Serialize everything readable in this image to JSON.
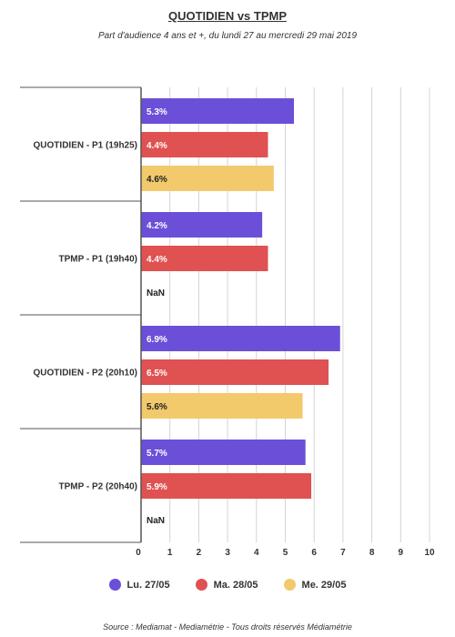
{
  "chart_data": {
    "type": "bar",
    "orientation": "horizontal",
    "title": "QUOTIDIEN vs TPMP",
    "subtitle": "Part d'audience 4 ans et +, du lundi 27 au mercredi 29 mai 2019",
    "categories": [
      "QUOTIDIEN - P1 (19h25)",
      "TPMP - P1 (19h40)",
      "QUOTIDIEN - P2 (20h10)",
      "TPMP - P2 (20h40)"
    ],
    "series": [
      {
        "name": "Lu. 27/05",
        "color": "#6b4fd8",
        "values": [
          5.3,
          4.2,
          6.9,
          5.7
        ],
        "labels": [
          "5.3%",
          "4.2%",
          "6.9%",
          "5.7%"
        ]
      },
      {
        "name": "Ma. 28/05",
        "color": "#e05151",
        "values": [
          4.4,
          4.4,
          6.5,
          5.9
        ],
        "labels": [
          "4.4%",
          "4.4%",
          "6.5%",
          "5.9%"
        ]
      },
      {
        "name": "Me. 29/05",
        "color": "#f2c96b",
        "values": [
          4.6,
          null,
          5.6,
          null
        ],
        "labels": [
          "4.6%",
          "NaN",
          "5.6%",
          "NaN"
        ]
      }
    ],
    "xlim": [
      0,
      10
    ],
    "xticks": [
      "0",
      "1",
      "2",
      "3",
      "4",
      "5",
      "6",
      "7",
      "8",
      "9",
      "10"
    ],
    "grid": true,
    "legend_position": "bottom"
  },
  "source": "Source : Mediamat - Mediamétrie - Tous droits réservés Médiamétrie"
}
